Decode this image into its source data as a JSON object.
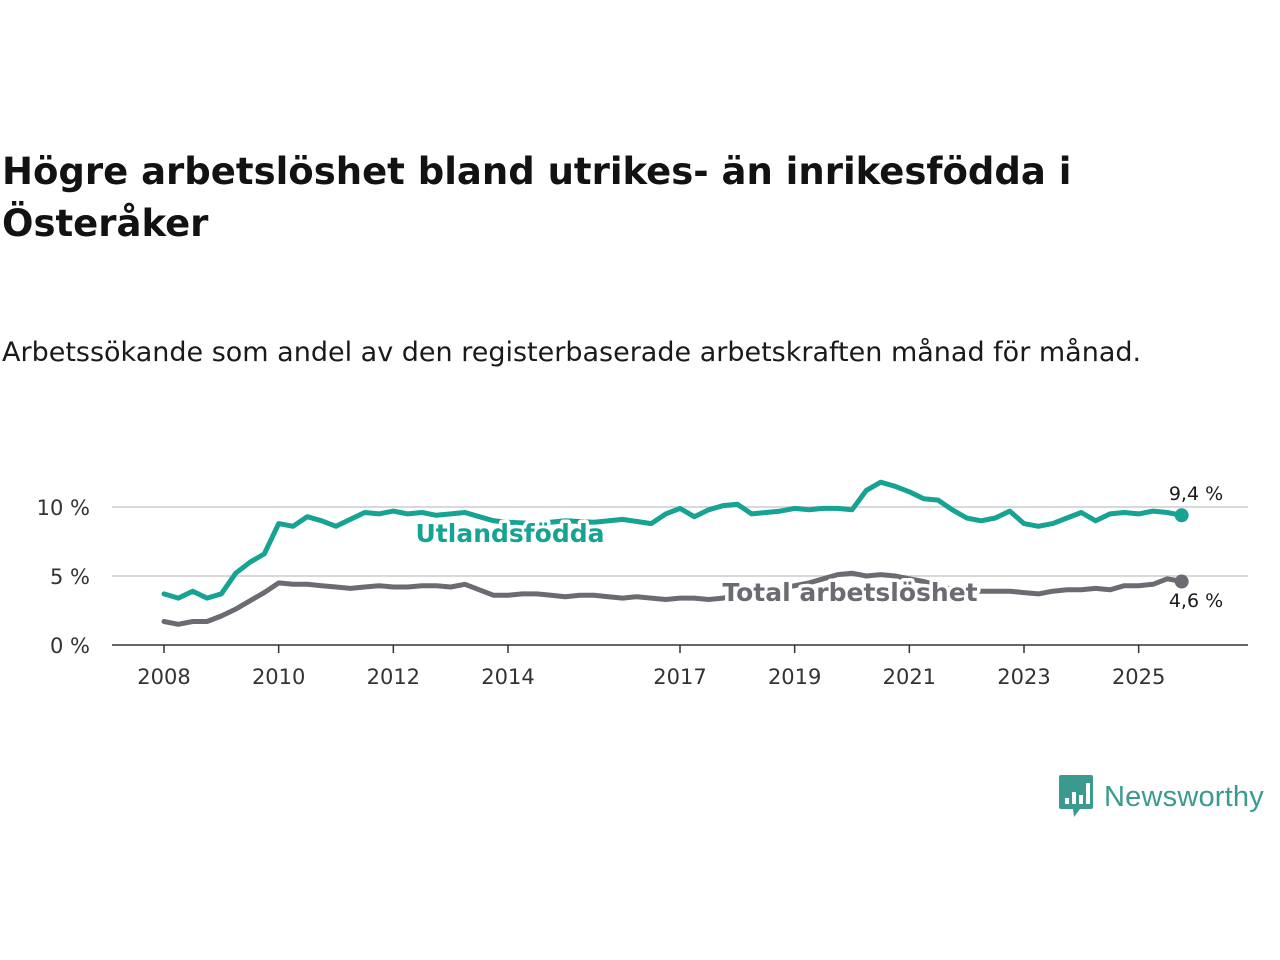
{
  "title": "Högre arbetslöshet bland utrikes- än inrikesfödda i Österåker",
  "subtitle": "Arbetssökande som andel av den registerbaserade arbetskraften månad för månad.",
  "brand": {
    "name": "Newsworthy",
    "color": "#3a9a90"
  },
  "chart_data": {
    "type": "line",
    "title": "Högre arbetslöshet bland utrikes- än inrikesfödda i Österåker",
    "xlabel": "",
    "ylabel": "",
    "x_range": [
      2008,
      2026
    ],
    "ylim": [
      0,
      12
    ],
    "y_ticks": [
      0,
      5,
      10
    ],
    "y_tick_labels": [
      "0 %",
      "5 %",
      "10 %"
    ],
    "x_ticks": [
      2008,
      2010,
      2012,
      2014,
      2017,
      2019,
      2021,
      2023,
      2025
    ],
    "x_tick_labels": [
      "2008",
      "2010",
      "2012",
      "2014",
      "2017",
      "2019",
      "2021",
      "2023",
      "2025"
    ],
    "grid": true,
    "series": [
      {
        "name": "Utlandsfödda",
        "label": "Utlandsfödda",
        "color": "#16a394",
        "end_label": "9,4 %",
        "end_value": 9.4,
        "x": [
          2008.0,
          2008.25,
          2008.5,
          2008.75,
          2009.0,
          2009.25,
          2009.5,
          2009.75,
          2010.0,
          2010.25,
          2010.5,
          2010.75,
          2011.0,
          2011.25,
          2011.5,
          2011.75,
          2012.0,
          2012.25,
          2012.5,
          2012.75,
          2013.0,
          2013.25,
          2013.5,
          2013.75,
          2014.0,
          2014.5,
          2015.0,
          2015.5,
          2016.0,
          2016.5,
          2016.75,
          2017.0,
          2017.25,
          2017.5,
          2017.75,
          2018.0,
          2018.25,
          2018.5,
          2018.75,
          2019.0,
          2019.25,
          2019.5,
          2019.75,
          2020.0,
          2020.25,
          2020.5,
          2020.75,
          2021.0,
          2021.25,
          2021.5,
          2021.75,
          2022.0,
          2022.25,
          2022.5,
          2022.75,
          2023.0,
          2023.25,
          2023.5,
          2023.75,
          2024.0,
          2024.25,
          2024.5,
          2024.75,
          2025.0,
          2025.25,
          2025.5,
          2025.75
        ],
        "values": [
          3.7,
          3.4,
          3.9,
          3.4,
          3.7,
          5.2,
          6.0,
          6.6,
          8.8,
          8.6,
          9.3,
          9.0,
          8.6,
          9.1,
          9.6,
          9.5,
          9.7,
          9.5,
          9.6,
          9.4,
          9.5,
          9.6,
          9.3,
          9.0,
          8.9,
          8.8,
          9.0,
          8.9,
          9.1,
          8.8,
          9.5,
          9.9,
          9.3,
          9.8,
          10.1,
          10.2,
          9.5,
          9.6,
          9.7,
          9.9,
          9.8,
          9.9,
          9.9,
          9.8,
          11.2,
          11.8,
          11.5,
          11.1,
          10.6,
          10.5,
          9.8,
          9.2,
          9.0,
          9.2,
          9.7,
          8.8,
          8.6,
          8.8,
          9.2,
          9.6,
          9.0,
          9.5,
          9.6,
          9.5,
          9.7,
          9.6,
          9.4
        ]
      },
      {
        "name": "Total arbetslöshet",
        "label": "Total arbetslöshet",
        "color": "#6d6b72",
        "end_label": "4,6 %",
        "end_value": 4.6,
        "x": [
          2008.0,
          2008.25,
          2008.5,
          2008.75,
          2009.0,
          2009.25,
          2009.5,
          2009.75,
          2010.0,
          2010.25,
          2010.5,
          2010.75,
          2011.0,
          2011.25,
          2011.5,
          2011.75,
          2012.0,
          2012.25,
          2012.5,
          2012.75,
          2013.0,
          2013.25,
          2013.5,
          2013.75,
          2014.0,
          2014.25,
          2014.5,
          2014.75,
          2015.0,
          2015.25,
          2015.5,
          2015.75,
          2016.0,
          2016.25,
          2016.5,
          2016.75,
          2017.0,
          2017.25,
          2017.5,
          2017.75,
          2018.0,
          2018.25,
          2018.5,
          2018.75,
          2019.0,
          2019.25,
          2019.5,
          2019.75,
          2020.0,
          2020.25,
          2020.5,
          2020.75,
          2021.0,
          2021.25,
          2021.5,
          2021.75,
          2022.0,
          2022.25,
          2022.5,
          2022.75,
          2023.0,
          2023.25,
          2023.5,
          2023.75,
          2024.0,
          2024.25,
          2024.5,
          2024.75,
          2025.0,
          2025.25,
          2025.5,
          2025.75
        ],
        "values": [
          1.7,
          1.5,
          1.7,
          1.7,
          2.1,
          2.6,
          3.2,
          3.8,
          4.5,
          4.4,
          4.4,
          4.3,
          4.2,
          4.1,
          4.2,
          4.3,
          4.2,
          4.2,
          4.3,
          4.3,
          4.2,
          4.4,
          4.0,
          3.6,
          3.6,
          3.7,
          3.7,
          3.6,
          3.5,
          3.6,
          3.6,
          3.5,
          3.4,
          3.5,
          3.4,
          3.3,
          3.4,
          3.4,
          3.3,
          3.4,
          3.6,
          3.9,
          4.0,
          4.1,
          4.3,
          4.5,
          4.8,
          5.1,
          5.2,
          5.0,
          5.1,
          5.0,
          4.8,
          4.6,
          4.3,
          4.0,
          3.9,
          3.9,
          3.9,
          3.9,
          3.8,
          3.7,
          3.9,
          4.0,
          4.0,
          4.1,
          4.0,
          4.3,
          4.3,
          4.4,
          4.8,
          4.6
        ]
      }
    ]
  }
}
